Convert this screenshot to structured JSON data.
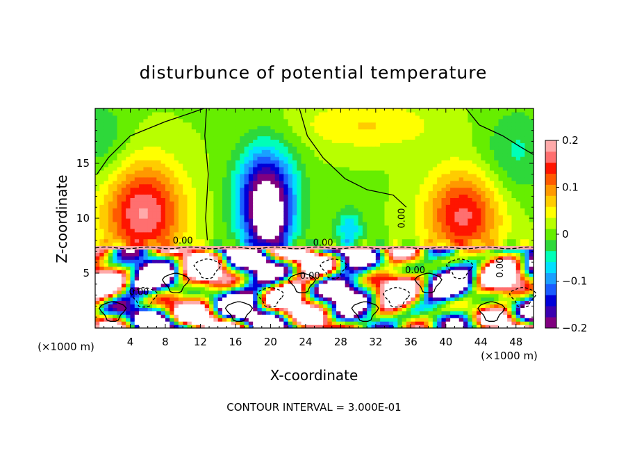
{
  "chart_data": {
    "type": "heatmap",
    "title": "disturbunce of potential temperature",
    "xlabel": "X-coordinate",
    "ylabel": "Z-coordinate",
    "x_unit": "(×1000 m)",
    "y_unit": "(×1000 m)",
    "xlim": [
      0,
      50
    ],
    "ylim": [
      0,
      20
    ],
    "x_ticks": [
      4,
      8,
      12,
      16,
      20,
      24,
      28,
      32,
      36,
      40,
      44,
      48
    ],
    "y_ticks": [
      5,
      10,
      15
    ],
    "colorbar": {
      "range": [
        -0.2,
        0.2
      ],
      "ticks": [
        {
          "value": 0.2,
          "label": "0.2"
        },
        {
          "value": 0.1,
          "label": "0.1"
        },
        {
          "value": 0.0,
          "label": "0"
        },
        {
          "value": -0.1,
          "label": "−0.1"
        },
        {
          "value": -0.2,
          "label": "−0.2"
        }
      ],
      "colors": [
        "#800080",
        "#3a00b0",
        "#0000d8",
        "#1a5cff",
        "#1aa0ff",
        "#00e0ff",
        "#00ffb8",
        "#2ed83a",
        "#66ee00",
        "#b8ff00",
        "#ffff00",
        "#ffcc00",
        "#ff9900",
        "#ff5a00",
        "#ff1500",
        "#ff6f6f",
        "#ffaaaa"
      ]
    },
    "contour_labels": [
      "0.00",
      "0.00",
      "0.00",
      "0.00",
      "0.00",
      "0.00",
      "0.00"
    ],
    "footnote": "CONTOUR INTERVAL = 3.000E-01"
  }
}
